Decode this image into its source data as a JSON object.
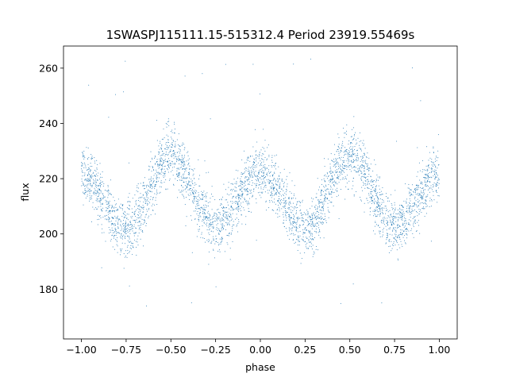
{
  "chart_data": {
    "type": "scatter",
    "title": "1SWASPJ115111.15-515312.4 Period 23919.55469s",
    "xlabel": "phase",
    "ylabel": "flux",
    "xlim": [
      -1.1,
      1.1
    ],
    "ylim": [
      162,
      268
    ],
    "xticks": [
      -1.0,
      -0.75,
      -0.5,
      -0.25,
      0.0,
      0.25,
      0.5,
      0.75,
      1.0
    ],
    "xtick_labels": [
      "−1.00",
      "−0.75",
      "−0.50",
      "−0.25",
      "0.00",
      "0.25",
      "0.50",
      "0.75",
      "1.00"
    ],
    "yticks": [
      180,
      200,
      220,
      240,
      260
    ],
    "ytick_labels": [
      "180",
      "200",
      "220",
      "240",
      "260"
    ],
    "grid": false,
    "marker_color": "#1f77b4",
    "series": [
      {
        "phase_range": [
          -1.0,
          1.0
        ],
        "approx_points": 4000,
        "model": "double-wave light curve repeated over phase −1 to 1",
        "minima": [
          {
            "phase": -0.75,
            "flux": 202
          },
          {
            "phase": -0.25,
            "flux": 203
          },
          {
            "phase": 0.25,
            "flux": 202
          },
          {
            "phase": 0.75,
            "flux": 203
          }
        ],
        "maxima": [
          {
            "phase": -1.0,
            "flux": 222
          },
          {
            "phase": -0.5,
            "flux": 228
          },
          {
            "phase": 0.0,
            "flux": 222
          },
          {
            "phase": 0.5,
            "flux": 228
          },
          {
            "phase": 1.0,
            "flux": 222
          }
        ],
        "scatter_sd": 5,
        "outlier_range": [
          168,
          264
        ]
      }
    ]
  }
}
